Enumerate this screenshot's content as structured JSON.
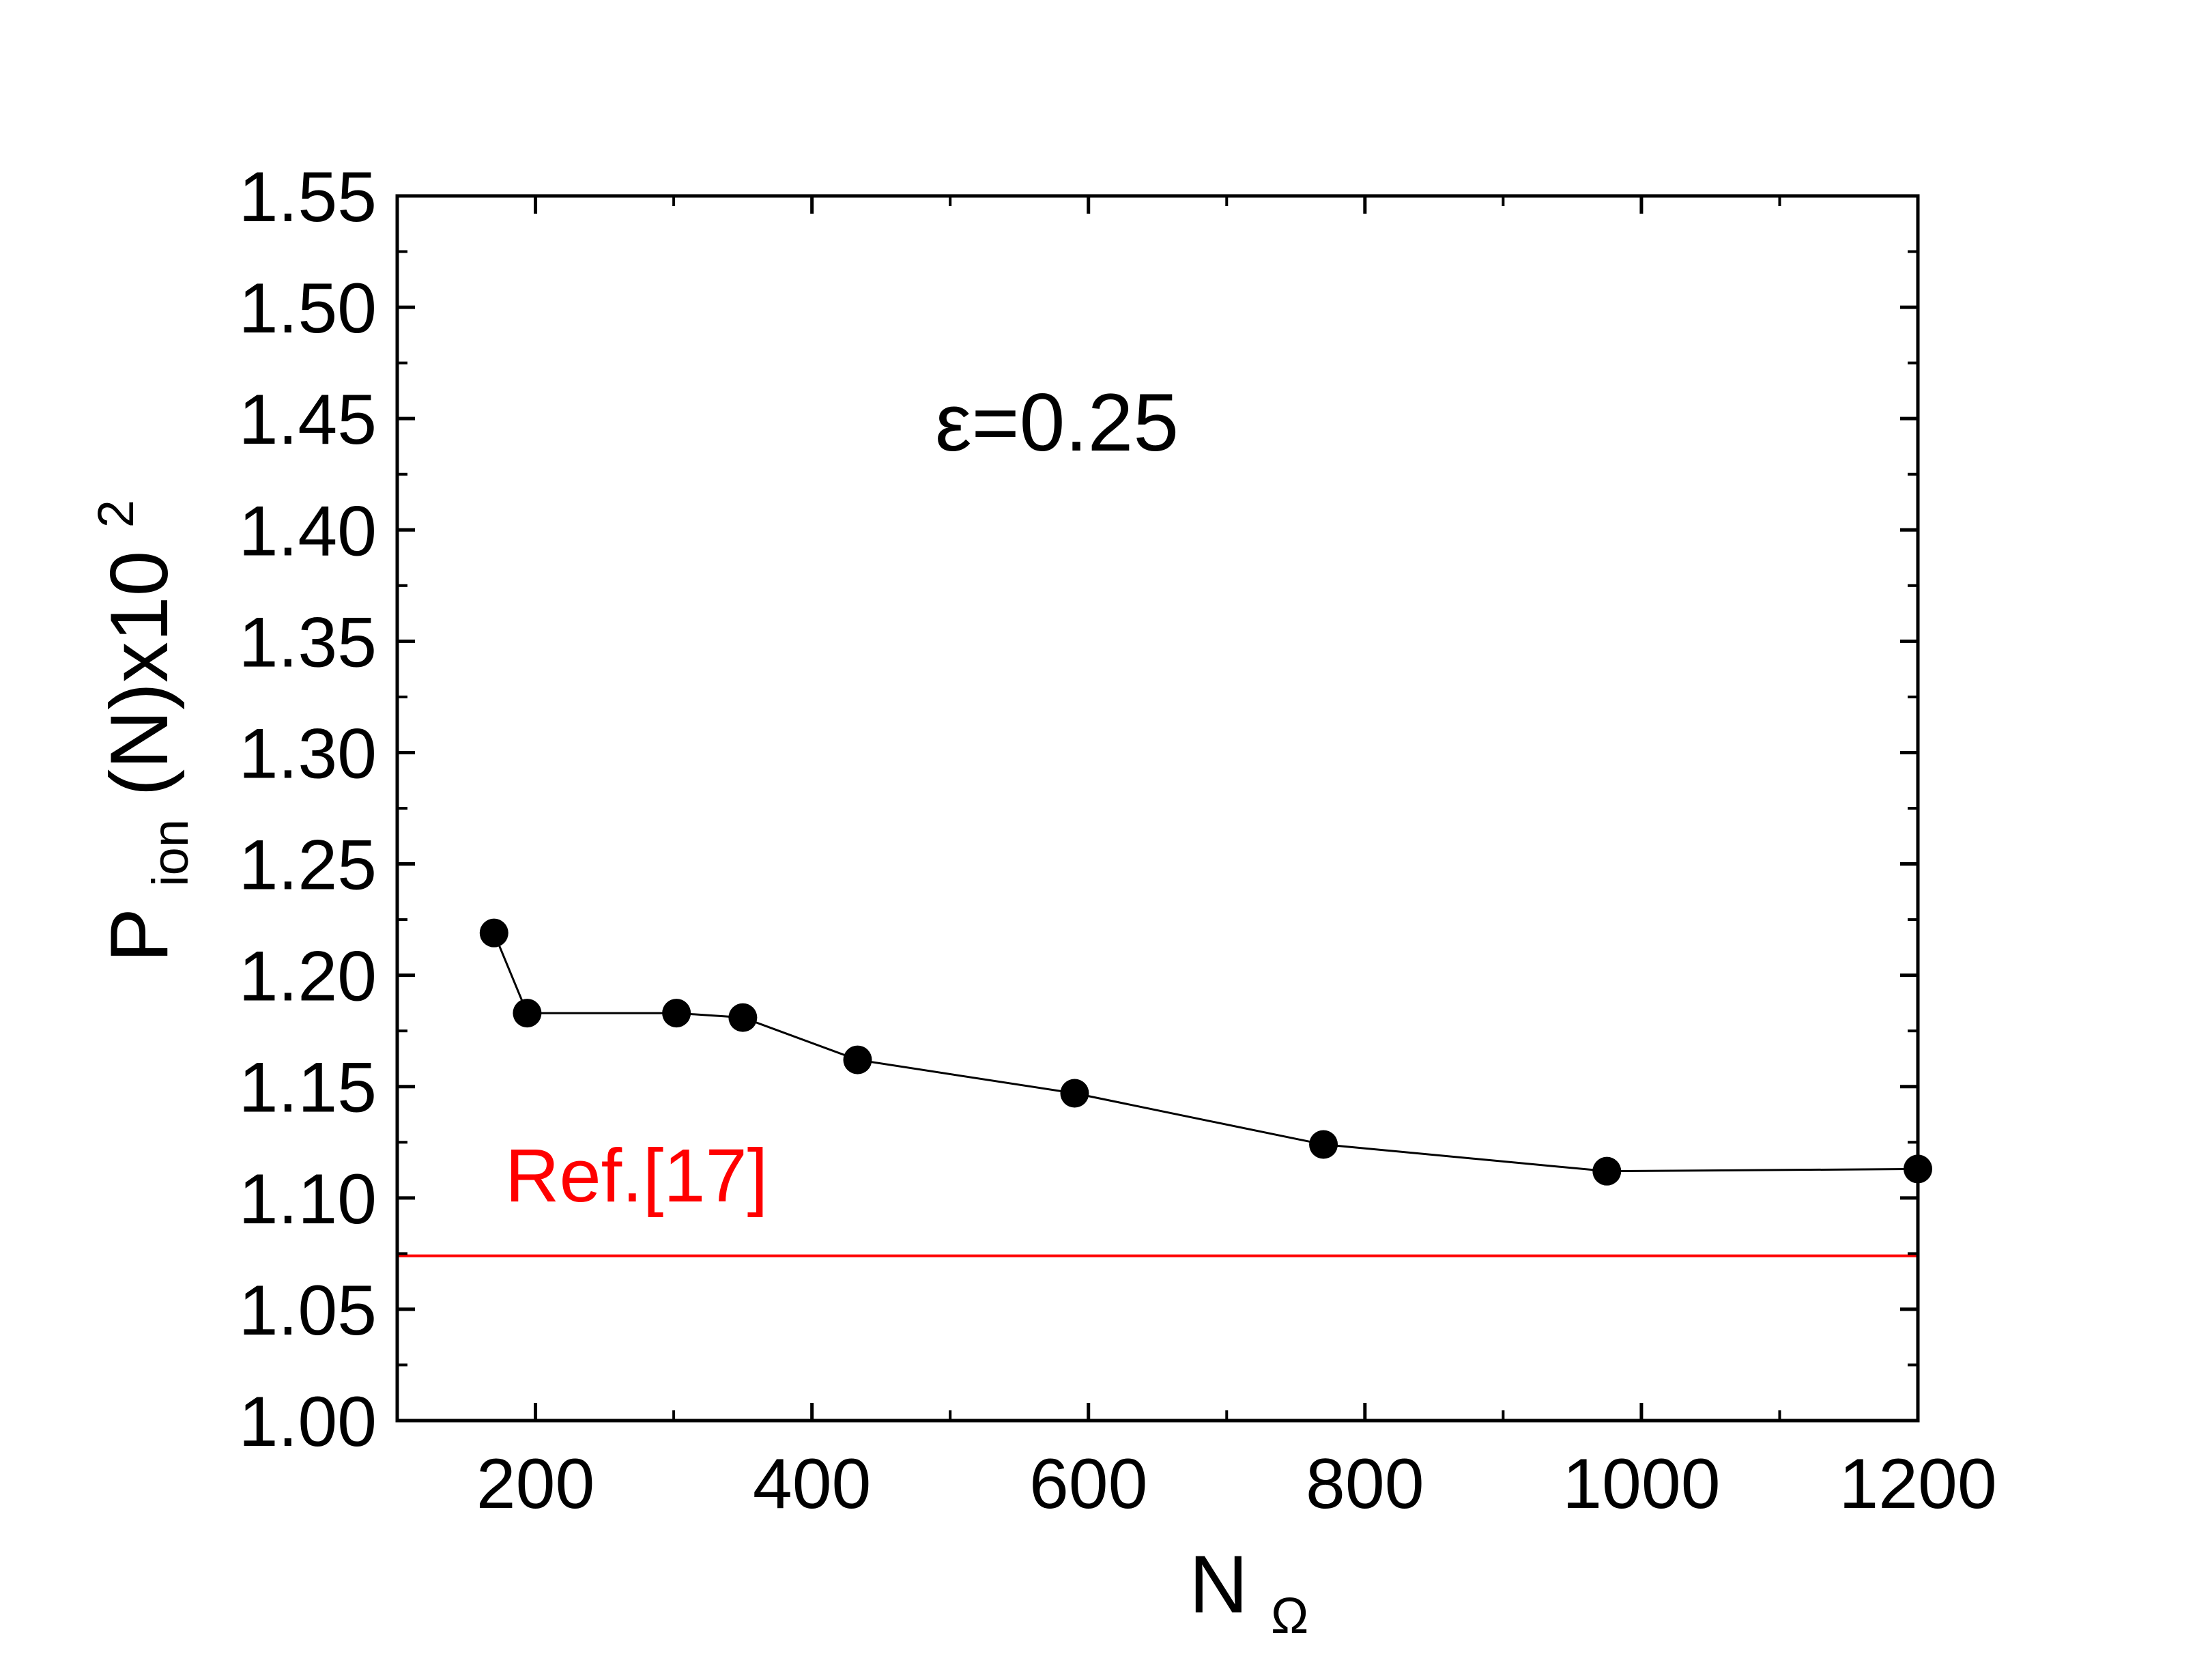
{
  "chart_data": {
    "type": "line",
    "xlabel": {
      "main": "N",
      "sub": "Ω"
    },
    "ylabel": {
      "main": "P",
      "sub": "ion",
      "tail": "(N)x10",
      "sup": "2"
    },
    "xlim": [
      100,
      1200
    ],
    "ylim": [
      1.0,
      1.55
    ],
    "x_ticks": [
      200,
      400,
      600,
      800,
      1000,
      1200
    ],
    "x_tick_labels": [
      "200",
      "400",
      "600",
      "800",
      "1000",
      "1200"
    ],
    "y_ticks": [
      1.0,
      1.05,
      1.1,
      1.15,
      1.2,
      1.25,
      1.3,
      1.35,
      1.4,
      1.45,
      1.5,
      1.55
    ],
    "y_tick_labels": [
      "1.00",
      "1.05",
      "1.10",
      "1.15",
      "1.20",
      "1.25",
      "1.30",
      "1.35",
      "1.40",
      "1.45",
      "1.50",
      "1.55"
    ],
    "grid": false,
    "series": [
      {
        "color": "#000000",
        "marker": "circle",
        "x": [
          170,
          194,
          302,
          350,
          433,
          590,
          770,
          975,
          1200
        ],
        "y": [
          1.219,
          1.183,
          1.183,
          1.181,
          1.162,
          1.147,
          1.124,
          1.112,
          1.113
        ]
      }
    ],
    "reference_line": {
      "y": 1.074,
      "color": "#ff0000",
      "label": "Ref.[17]"
    },
    "annotation": "ε=0.25"
  }
}
